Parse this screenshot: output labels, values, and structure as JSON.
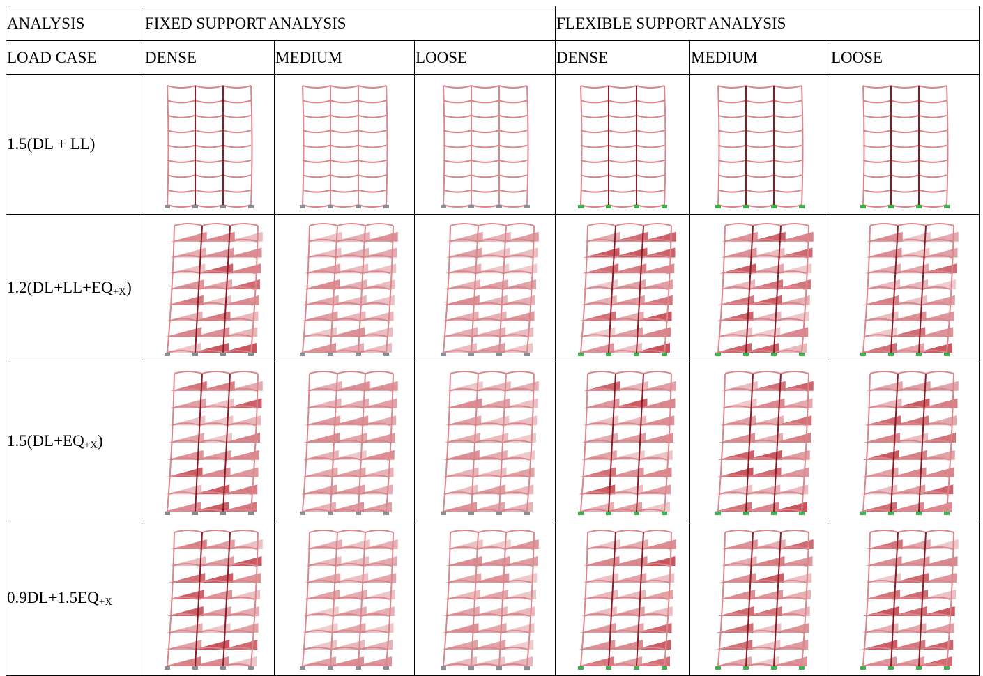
{
  "table": {
    "header": [
      "ANALYSIS",
      "FIXED SUPPORT ANALYSIS",
      "FLEXIBLE SUPPORT ANALYSIS"
    ],
    "subheader": [
      "LOAD CASE",
      "DENSE",
      "MEDIUM",
      "LOOSE",
      "DENSE",
      "MEDIUM",
      "LOOSE"
    ],
    "rows": [
      {
        "load_case": {
          "text": "1.5(DL + LL)"
        }
      },
      {
        "load_case": {
          "text": "1.2(DL+LL+EQ",
          "sub": "+X",
          "tail": ")"
        }
      },
      {
        "load_case": {
          "text": "1.5(DL+EQ",
          "sub": "+X",
          "tail": ")"
        }
      },
      {
        "load_case": {
          "text": "0.9DL+1.5EQ",
          "sub": "+X"
        }
      }
    ]
  }
}
